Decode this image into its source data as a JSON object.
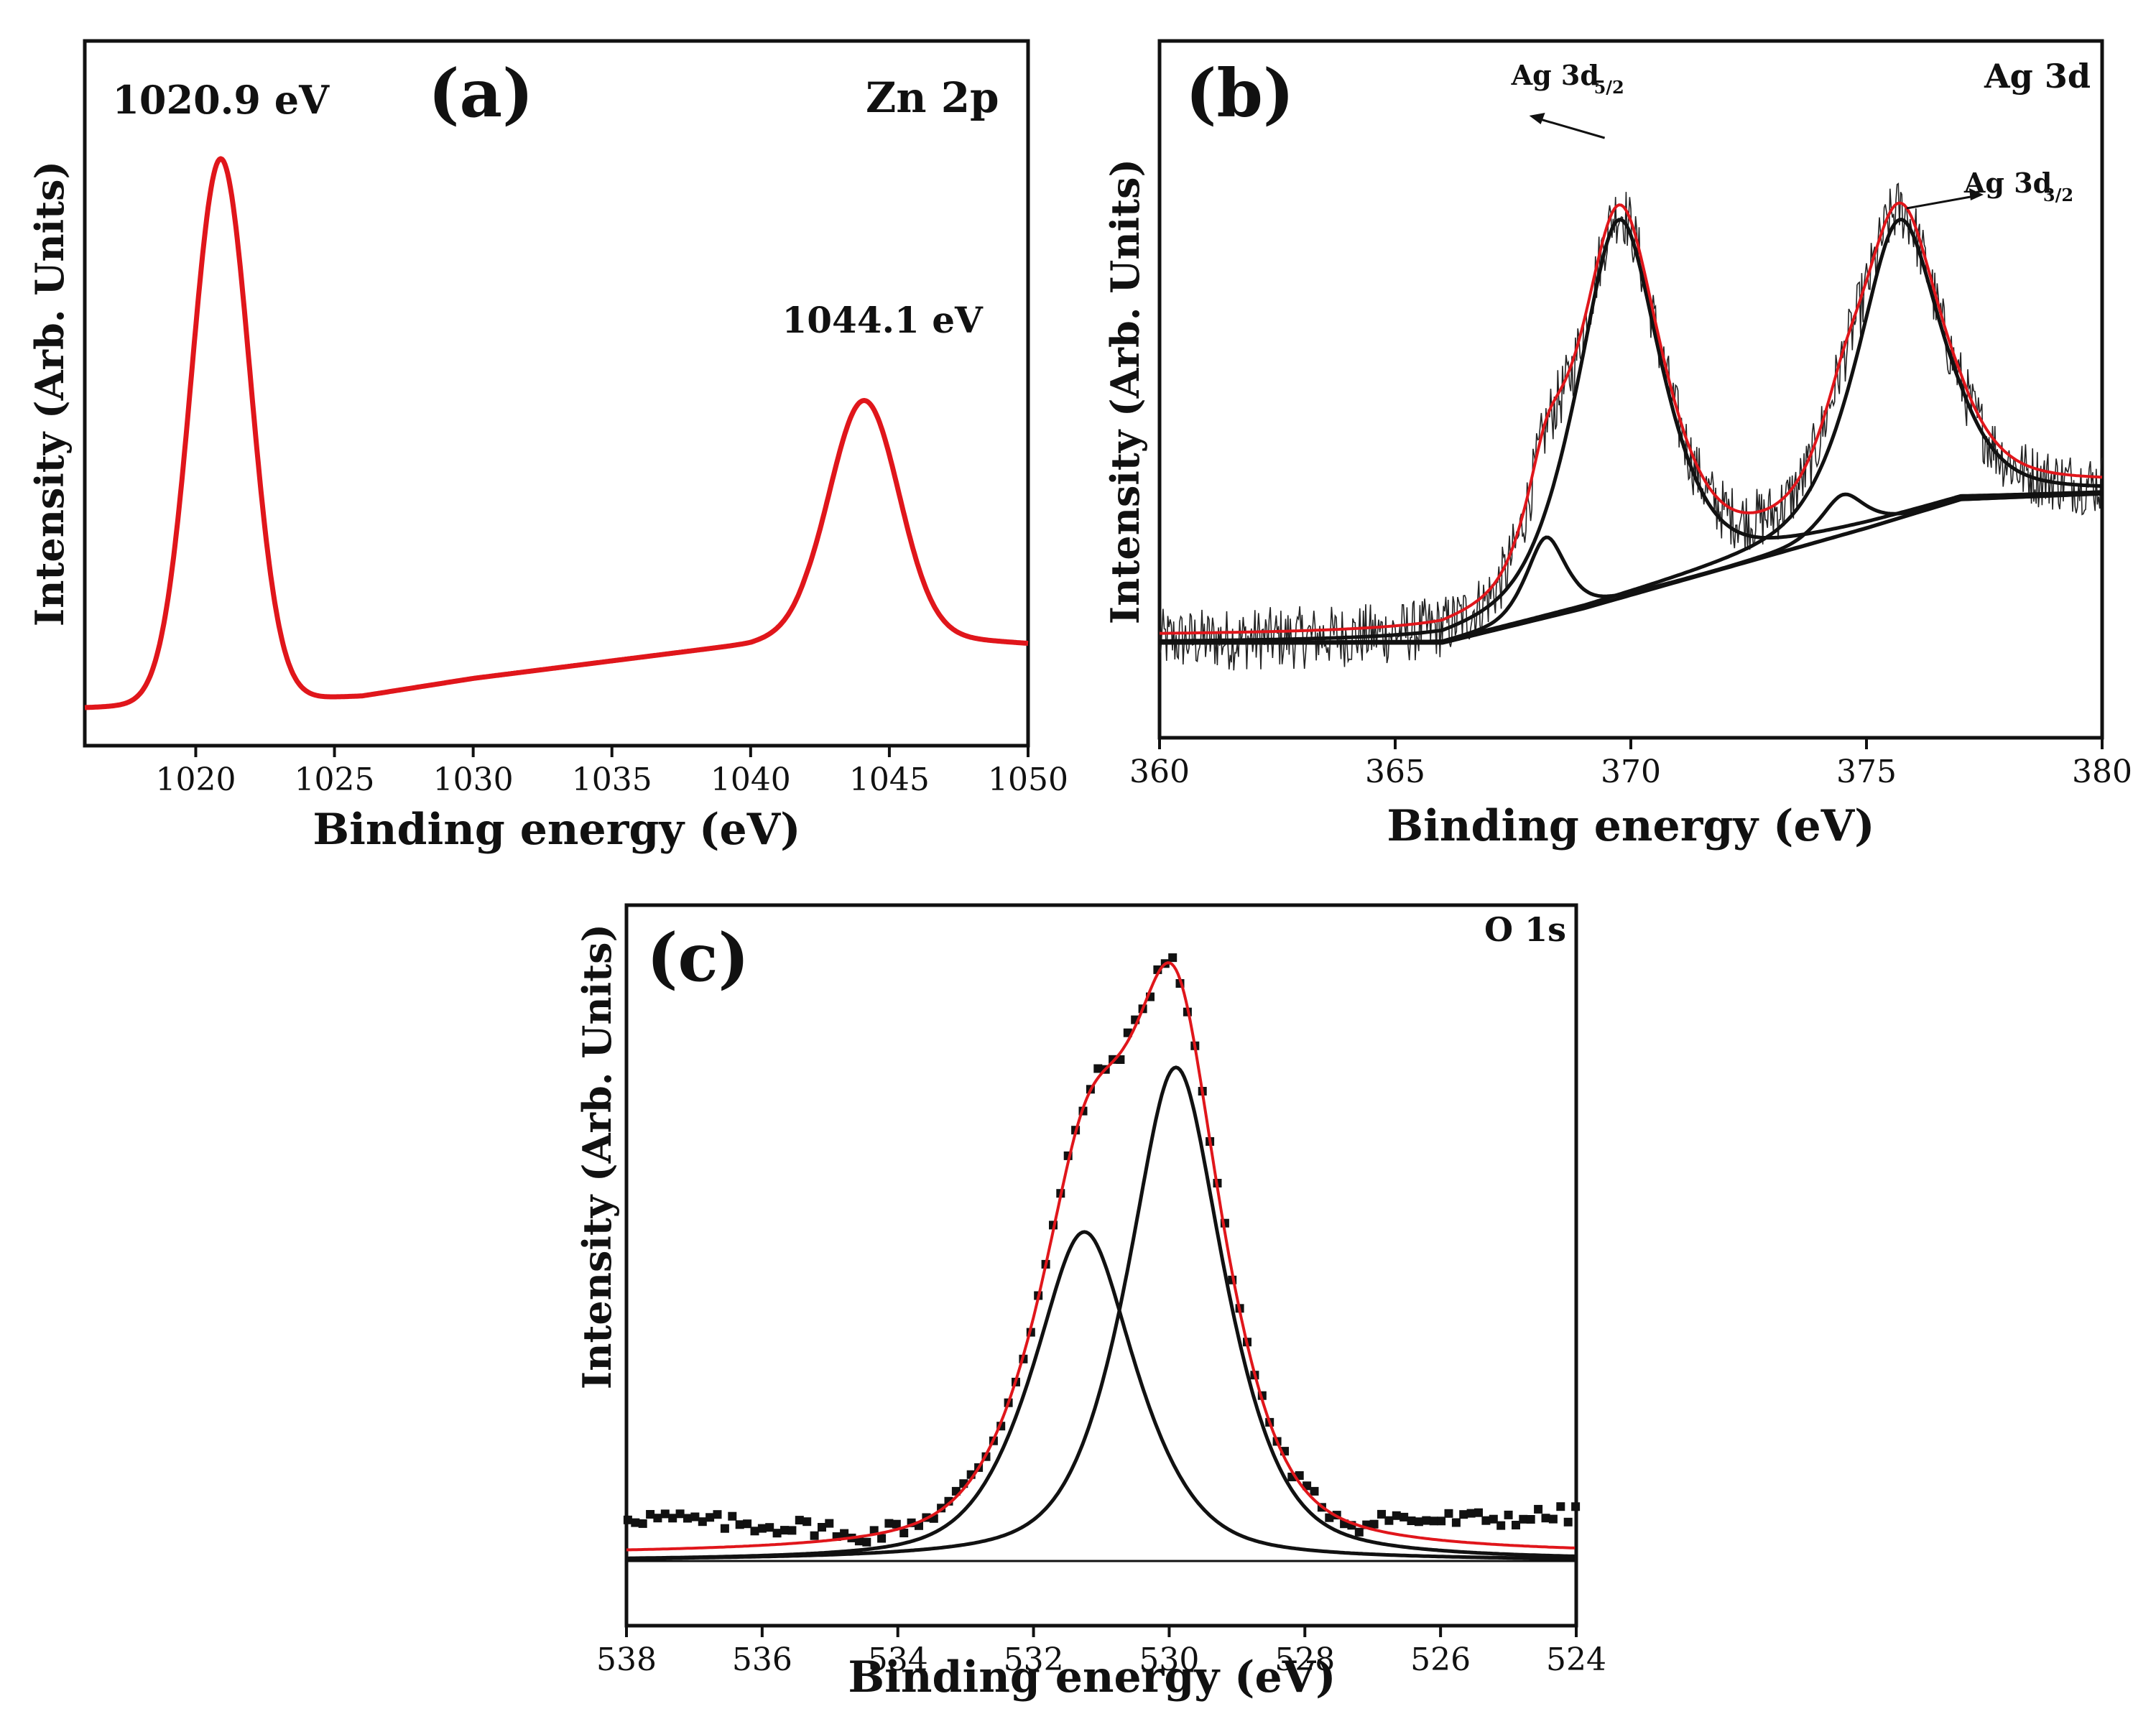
{
  "chart_data": [
    {
      "id": "a",
      "type": "line",
      "panel_label": "(a)",
      "title": "Zn 2p",
      "xlabel": "Binding energy (eV)",
      "ylabel": "Intensity (Arb. Units)",
      "xlim": [
        1016,
        1050
      ],
      "ylim": [
        0,
        1.0
      ],
      "xticks": [
        1020,
        1025,
        1030,
        1035,
        1040,
        1045,
        1050
      ],
      "line_color": "#e0161b",
      "peaks": [
        {
          "center": 1020.9,
          "height": 0.93,
          "width": 1.05
        },
        {
          "center": 1044.1,
          "height": 0.4,
          "width": 1.25
        }
      ],
      "background": {
        "x": [
          1016,
          1026,
          1030,
          1035,
          1040,
          1042,
          1047,
          1050
        ],
        "y": [
          0.0,
          0.02,
          0.05,
          0.08,
          0.11,
          0.13,
          0.12,
          0.11
        ]
      },
      "annotations": [
        {
          "text": "1020.9 eV",
          "x": 1020.9
        },
        {
          "text": "1044.1 eV",
          "x": 1044.1
        }
      ]
    },
    {
      "id": "b",
      "type": "line",
      "panel_label": "(b)",
      "title": "Ag 3d",
      "xlabel": "Binding energy (eV)",
      "ylabel": "Intensity (Arb. Units)",
      "xlim": [
        360,
        380
      ],
      "ylim": [
        -0.1,
        1.0
      ],
      "xticks": [
        360,
        365,
        370,
        375,
        380
      ],
      "fit_color": "#e0161b",
      "data_color": "#222222",
      "component_color": "#111111",
      "baseline": {
        "x": [
          360,
          366,
          369,
          372,
          375,
          377,
          380
        ],
        "y": [
          0.0,
          0.0,
          0.06,
          0.13,
          0.2,
          0.25,
          0.26
        ]
      },
      "components": [
        {
          "center": 369.75,
          "height": 0.66,
          "width": 0.95
        },
        {
          "center": 375.7,
          "height": 0.52,
          "width": 0.95
        },
        {
          "center": 368.2,
          "height": 0.14,
          "width": 0.45
        },
        {
          "center": 374.5,
          "height": 0.07,
          "width": 0.5
        }
      ],
      "annotations": [
        {
          "text": "Ag 3d",
          "sub": "5/2",
          "x": 369.75
        },
        {
          "text": "Ag 3d",
          "sub": "3/2",
          "x": 375.7
        }
      ]
    },
    {
      "id": "c",
      "type": "scatter",
      "panel_label": "(c)",
      "title": "O 1s",
      "xlabel": "Binding energy (eV)",
      "ylabel": "Intensity (Arb. Units)",
      "xlim": [
        538,
        524
      ],
      "ylim": [
        0,
        1.0
      ],
      "xticks": [
        538,
        536,
        534,
        532,
        530,
        528,
        526,
        524
      ],
      "fit_color": "#e0161b",
      "marker_color": "#111111",
      "baseline": 0.0,
      "components": [
        {
          "center": 531.25,
          "height": 0.56,
          "width": 0.8
        },
        {
          "center": 529.9,
          "height": 0.84,
          "width": 0.75
        }
      ]
    }
  ]
}
